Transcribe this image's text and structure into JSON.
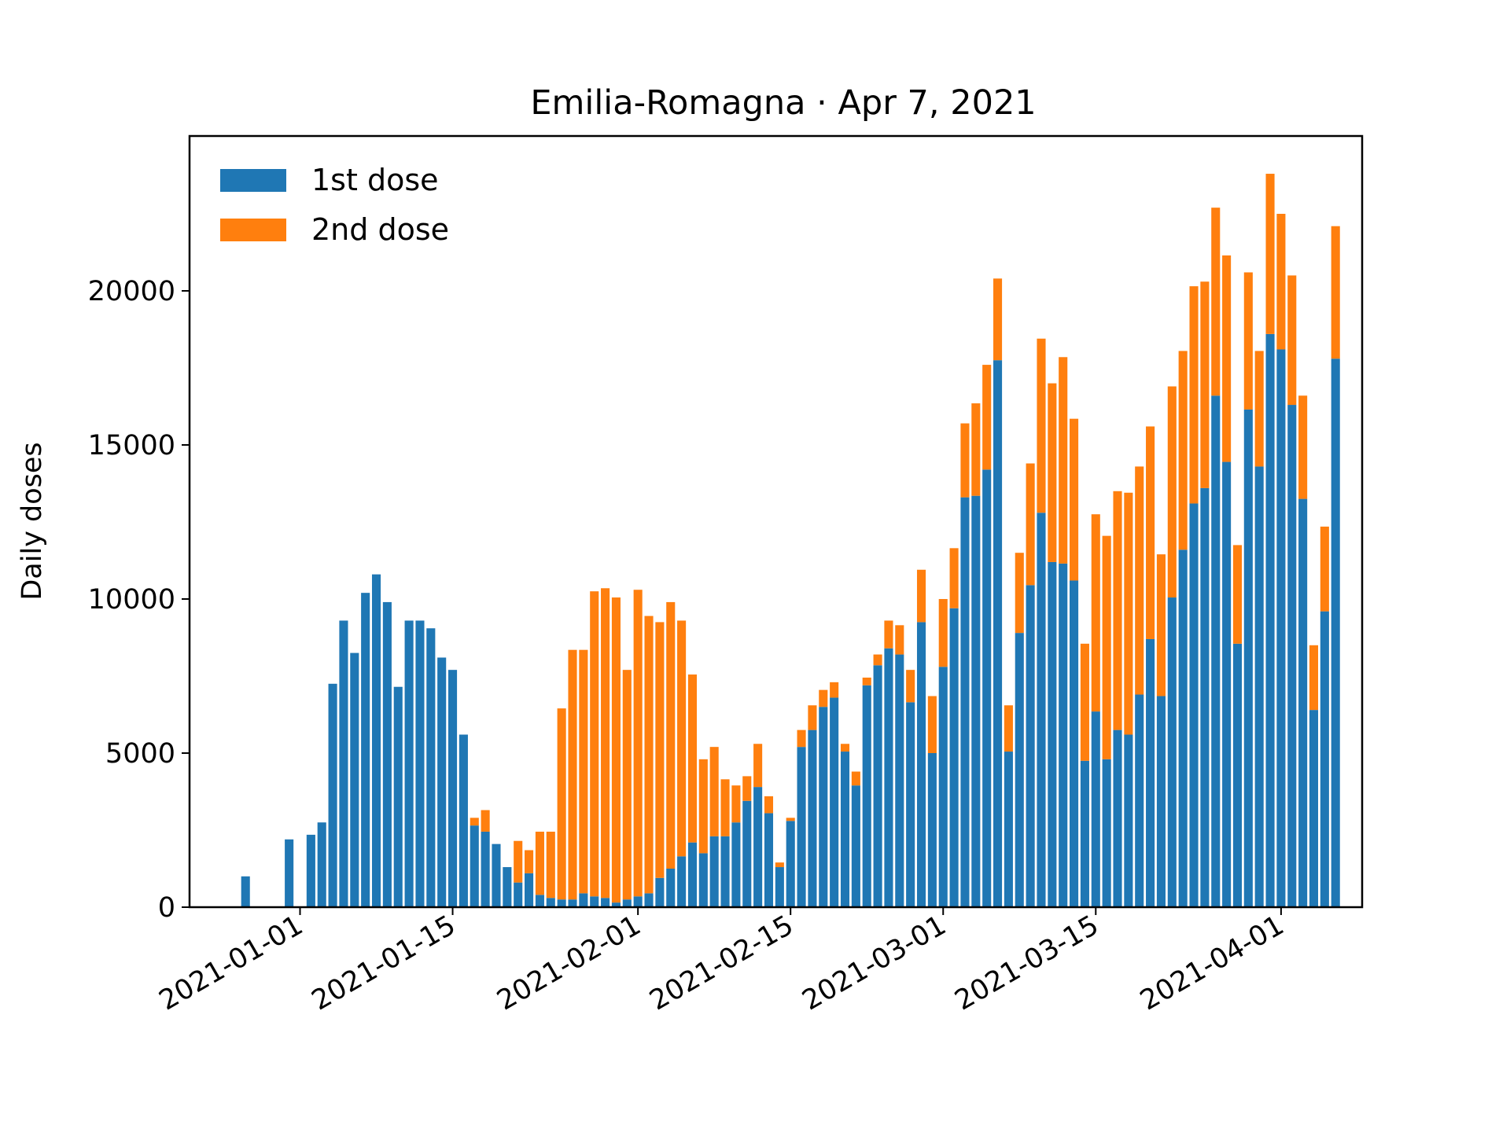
{
  "chart_data": {
    "type": "bar",
    "stacked": true,
    "title": "Emilia-Romagna · Apr 7, 2021",
    "xlabel": "",
    "ylabel": "Daily doses",
    "start_date": "2020-12-27",
    "x_ticks": [
      "2021-01-01",
      "2021-01-15",
      "2021-02-01",
      "2021-02-15",
      "2021-03-01",
      "2021-03-15",
      "2021-04-01"
    ],
    "y_ticks": [
      0,
      5000,
      10000,
      15000,
      20000
    ],
    "ylim": [
      0,
      25000
    ],
    "grid": false,
    "legend_position": "top-left",
    "series": [
      {
        "name": "1st dose",
        "color": "#1f77b4",
        "values": [
          1000,
          0,
          0,
          0,
          2200,
          0,
          2350,
          2750,
          7250,
          9300,
          8250,
          10200,
          10800,
          9900,
          7150,
          9300,
          9300,
          9050,
          8100,
          7700,
          5600,
          2650,
          2450,
          2050,
          1300,
          800,
          1100,
          400,
          300,
          250,
          250,
          450,
          350,
          300,
          150,
          250,
          350,
          450,
          950,
          1250,
          1650,
          2100,
          1750,
          2300,
          2300,
          2750,
          3450,
          3900,
          3050,
          1300,
          2800,
          5200,
          5750,
          6500,
          6800,
          5050,
          3950,
          7200,
          7850,
          8400,
          8200,
          6650,
          9250,
          5000,
          7800,
          9700,
          13300,
          13350,
          14200,
          17750,
          5050,
          8900,
          10450,
          12800,
          11200,
          11150,
          10600,
          4750,
          6350,
          4800,
          5750,
          5600,
          6900,
          8700,
          6850,
          10050,
          11600,
          13100,
          13600,
          16600,
          14450,
          8550,
          16150,
          14300,
          18600,
          18100,
          16300,
          13250,
          6400,
          9600,
          17800
        ]
      },
      {
        "name": "2nd dose",
        "color": "#ff7f0e",
        "values": [
          0,
          0,
          0,
          0,
          0,
          0,
          0,
          0,
          0,
          0,
          0,
          0,
          0,
          0,
          0,
          0,
          0,
          0,
          0,
          0,
          0,
          250,
          700,
          0,
          0,
          1350,
          750,
          2050,
          2150,
          6200,
          8100,
          7900,
          9900,
          10050,
          9900,
          7450,
          9950,
          9000,
          8300,
          8650,
          7650,
          5450,
          3050,
          2900,
          1850,
          1200,
          800,
          1400,
          550,
          150,
          100,
          550,
          800,
          550,
          500,
          250,
          450,
          250,
          350,
          900,
          950,
          1050,
          1700,
          1850,
          2200,
          1950,
          2400,
          3000,
          3400,
          2650,
          1500,
          2600,
          3950,
          5650,
          5800,
          6700,
          5250,
          3800,
          6400,
          7250,
          7750,
          7850,
          7400,
          6900,
          4600,
          6850,
          6450,
          7050,
          6700,
          6100,
          6700,
          3200,
          4450,
          3750,
          5200,
          4400,
          4200,
          3350,
          2100,
          2750,
          4300
        ]
      }
    ]
  }
}
